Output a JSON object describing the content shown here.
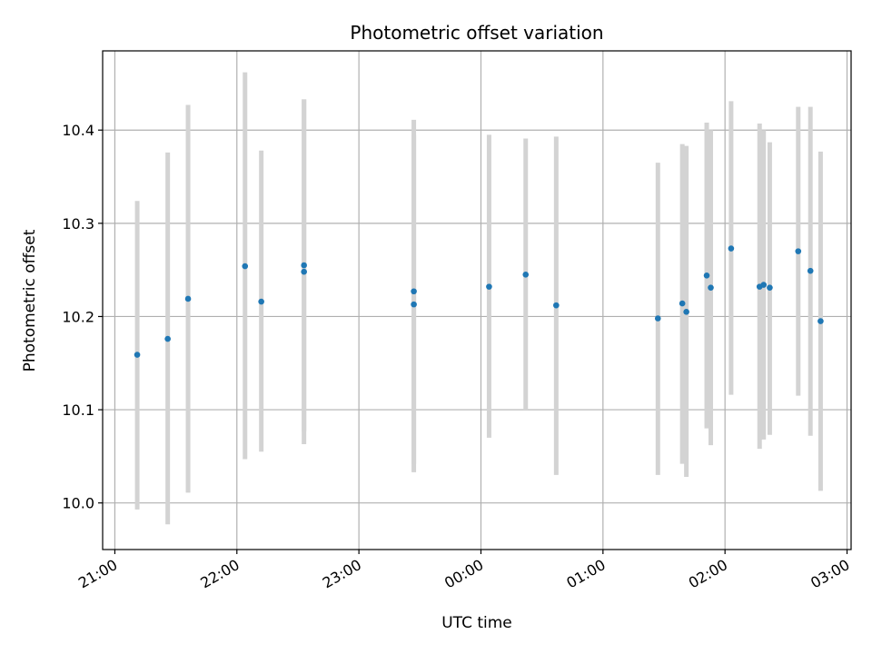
{
  "chart_data": {
    "type": "scatter",
    "title": "Photometric offset variation",
    "xlabel": "UTC time",
    "ylabel": "Photometric offset",
    "x_axis": {
      "type": "time",
      "start": "21:00",
      "end": "03:00",
      "ticks": [
        "21:00",
        "22:00",
        "23:00",
        "00:00",
        "01:00",
        "02:00",
        "03:00"
      ],
      "limits": [
        "20:54",
        "03:02"
      ]
    },
    "y_axis": {
      "ylim": [
        9.95,
        10.485
      ],
      "ticks": [
        "10.0",
        "10.1",
        "10.2",
        "10.3",
        "10.4"
      ]
    },
    "grid": true,
    "colors": {
      "points": "#1f77b4",
      "errorbars": "#d3d3d3",
      "grid": "#b0b0b0"
    },
    "points": [
      {
        "t": "21:11",
        "y": 10.159,
        "lo": 9.993,
        "hi": 10.324
      },
      {
        "t": "21:26",
        "y": 10.176,
        "lo": 9.977,
        "hi": 10.376
      },
      {
        "t": "21:36",
        "y": 10.219,
        "lo": 10.011,
        "hi": 10.427
      },
      {
        "t": "22:04",
        "y": 10.254,
        "lo": 10.047,
        "hi": 10.462
      },
      {
        "t": "22:12",
        "y": 10.216,
        "lo": 10.055,
        "hi": 10.378
      },
      {
        "t": "22:33",
        "y": 10.255,
        "lo": 10.077,
        "hi": 10.433
      },
      {
        "t": "22:33",
        "y": 10.248,
        "lo": 10.063,
        "hi": 10.433
      },
      {
        "t": "23:27",
        "y": 10.213,
        "lo": 10.033,
        "hi": 10.395
      },
      {
        "t": "23:27",
        "y": 10.227,
        "lo": 10.042,
        "hi": 10.411
      },
      {
        "t": "00:04",
        "y": 10.232,
        "lo": 10.07,
        "hi": 10.395
      },
      {
        "t": "00:22",
        "y": 10.245,
        "lo": 10.099,
        "hi": 10.391
      },
      {
        "t": "00:37",
        "y": 10.212,
        "lo": 10.03,
        "hi": 10.393
      },
      {
        "t": "01:27",
        "y": 10.198,
        "lo": 10.03,
        "hi": 10.365
      },
      {
        "t": "01:39",
        "y": 10.214,
        "lo": 10.042,
        "hi": 10.385
      },
      {
        "t": "01:41",
        "y": 10.205,
        "lo": 10.028,
        "hi": 10.383
      },
      {
        "t": "01:51",
        "y": 10.244,
        "lo": 10.08,
        "hi": 10.408
      },
      {
        "t": "01:53",
        "y": 10.231,
        "lo": 10.062,
        "hi": 10.4
      },
      {
        "t": "02:03",
        "y": 10.273,
        "lo": 10.116,
        "hi": 10.431
      },
      {
        "t": "02:17",
        "y": 10.232,
        "lo": 10.058,
        "hi": 10.407
      },
      {
        "t": "02:19",
        "y": 10.234,
        "lo": 10.068,
        "hi": 10.4
      },
      {
        "t": "02:22",
        "y": 10.231,
        "lo": 10.073,
        "hi": 10.387
      },
      {
        "t": "02:36",
        "y": 10.27,
        "lo": 10.115,
        "hi": 10.425
      },
      {
        "t": "02:42",
        "y": 10.249,
        "lo": 10.072,
        "hi": 10.425
      },
      {
        "t": "02:47",
        "y": 10.195,
        "lo": 10.013,
        "hi": 10.377
      }
    ]
  }
}
